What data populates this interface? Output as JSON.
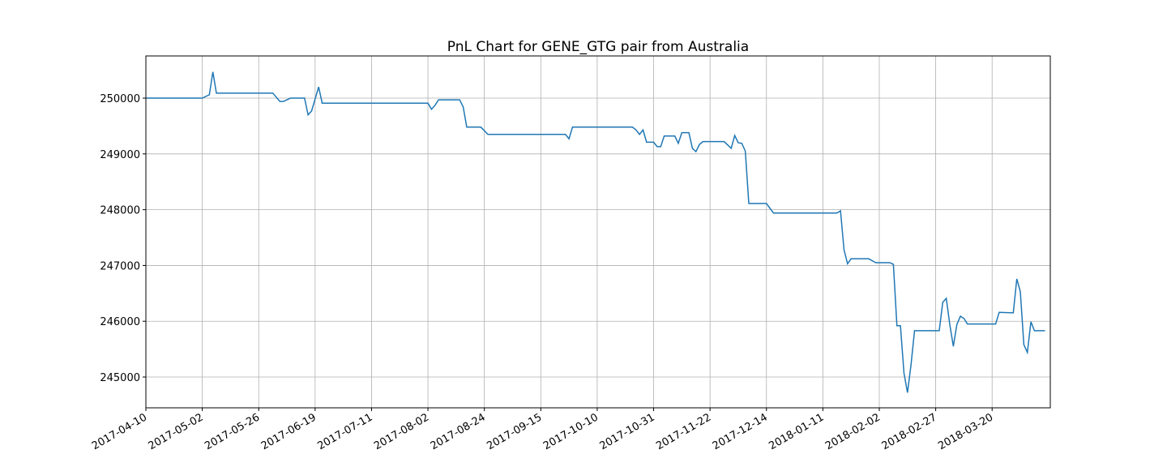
{
  "chart_data": {
    "type": "line",
    "title": "PnL Chart for GENE_GTG pair from Australia",
    "x": [
      0,
      16,
      18,
      19,
      20,
      36,
      38,
      39,
      41,
      45,
      46,
      47,
      49,
      50,
      80,
      81,
      82,
      83,
      89,
      90,
      91,
      95,
      97,
      119,
      120,
      121,
      138,
      139,
      140,
      141,
      142,
      144,
      145,
      146,
      147,
      150,
      151,
      152,
      154,
      155,
      156,
      157,
      158,
      164,
      166,
      167,
      168,
      169,
      170,
      171,
      176,
      178,
      196,
      197,
      198,
      199,
      200,
      205,
      207,
      211,
      212,
      213,
      214,
      215,
      216,
      217,
      218,
      225,
      226,
      227,
      228,
      229,
      230,
      231,
      232,
      233,
      241,
      242,
      246,
      247,
      248,
      249,
      250,
      251,
      252,
      255
    ],
    "series": [
      {
        "color": "#1f77b4",
        "values": [
          250000,
          250000,
          250060,
          250470,
          250090,
          250090,
          249940,
          249940,
          250000,
          250000,
          249700,
          249770,
          250200,
          249910,
          249910,
          249800,
          249870,
          249970,
          249970,
          249840,
          249480,
          249480,
          249350,
          249350,
          249270,
          249480,
          249480,
          249430,
          249350,
          249430,
          249210,
          249210,
          249130,
          249130,
          249320,
          249320,
          249190,
          249380,
          249380,
          249100,
          249040,
          249170,
          249220,
          249220,
          249100,
          249330,
          249200,
          249190,
          249050,
          248110,
          248110,
          247940,
          247940,
          247980,
          247280,
          247030,
          247120,
          247120,
          247050,
          247050,
          247020,
          245920,
          245920,
          245070,
          244720,
          245220,
          245830,
          245830,
          246340,
          246410,
          245940,
          245550,
          245940,
          246090,
          246050,
          245950,
          245950,
          246160,
          246150,
          246760,
          246530,
          245580,
          245440,
          245990,
          245830,
          245830
        ]
      }
    ],
    "xlim": [
      0,
      256.5
    ],
    "xticks": [
      {
        "value": 0,
        "label": "2017-04-10"
      },
      {
        "value": 16,
        "label": "2017-05-02"
      },
      {
        "value": 32,
        "label": "2017-05-26"
      },
      {
        "value": 48,
        "label": "2017-06-19"
      },
      {
        "value": 64,
        "label": "2017-07-11"
      },
      {
        "value": 80,
        "label": "2017-08-02"
      },
      {
        "value": 96,
        "label": "2017-08-24"
      },
      {
        "value": 112,
        "label": "2017-09-15"
      },
      {
        "value": 128,
        "label": "2017-10-10"
      },
      {
        "value": 144,
        "label": "2017-10-31"
      },
      {
        "value": 160,
        "label": "2017-11-22"
      },
      {
        "value": 176,
        "label": "2017-12-14"
      },
      {
        "value": 192,
        "label": "2018-01-11"
      },
      {
        "value": 208,
        "label": "2018-02-02"
      },
      {
        "value": 224,
        "label": "2018-02-27"
      },
      {
        "value": 240,
        "label": "2018-03-20"
      }
    ],
    "ylim": [
      244448,
      250756
    ],
    "yticks": [
      245000,
      246000,
      247000,
      248000,
      249000,
      250000
    ],
    "grid": true
  }
}
